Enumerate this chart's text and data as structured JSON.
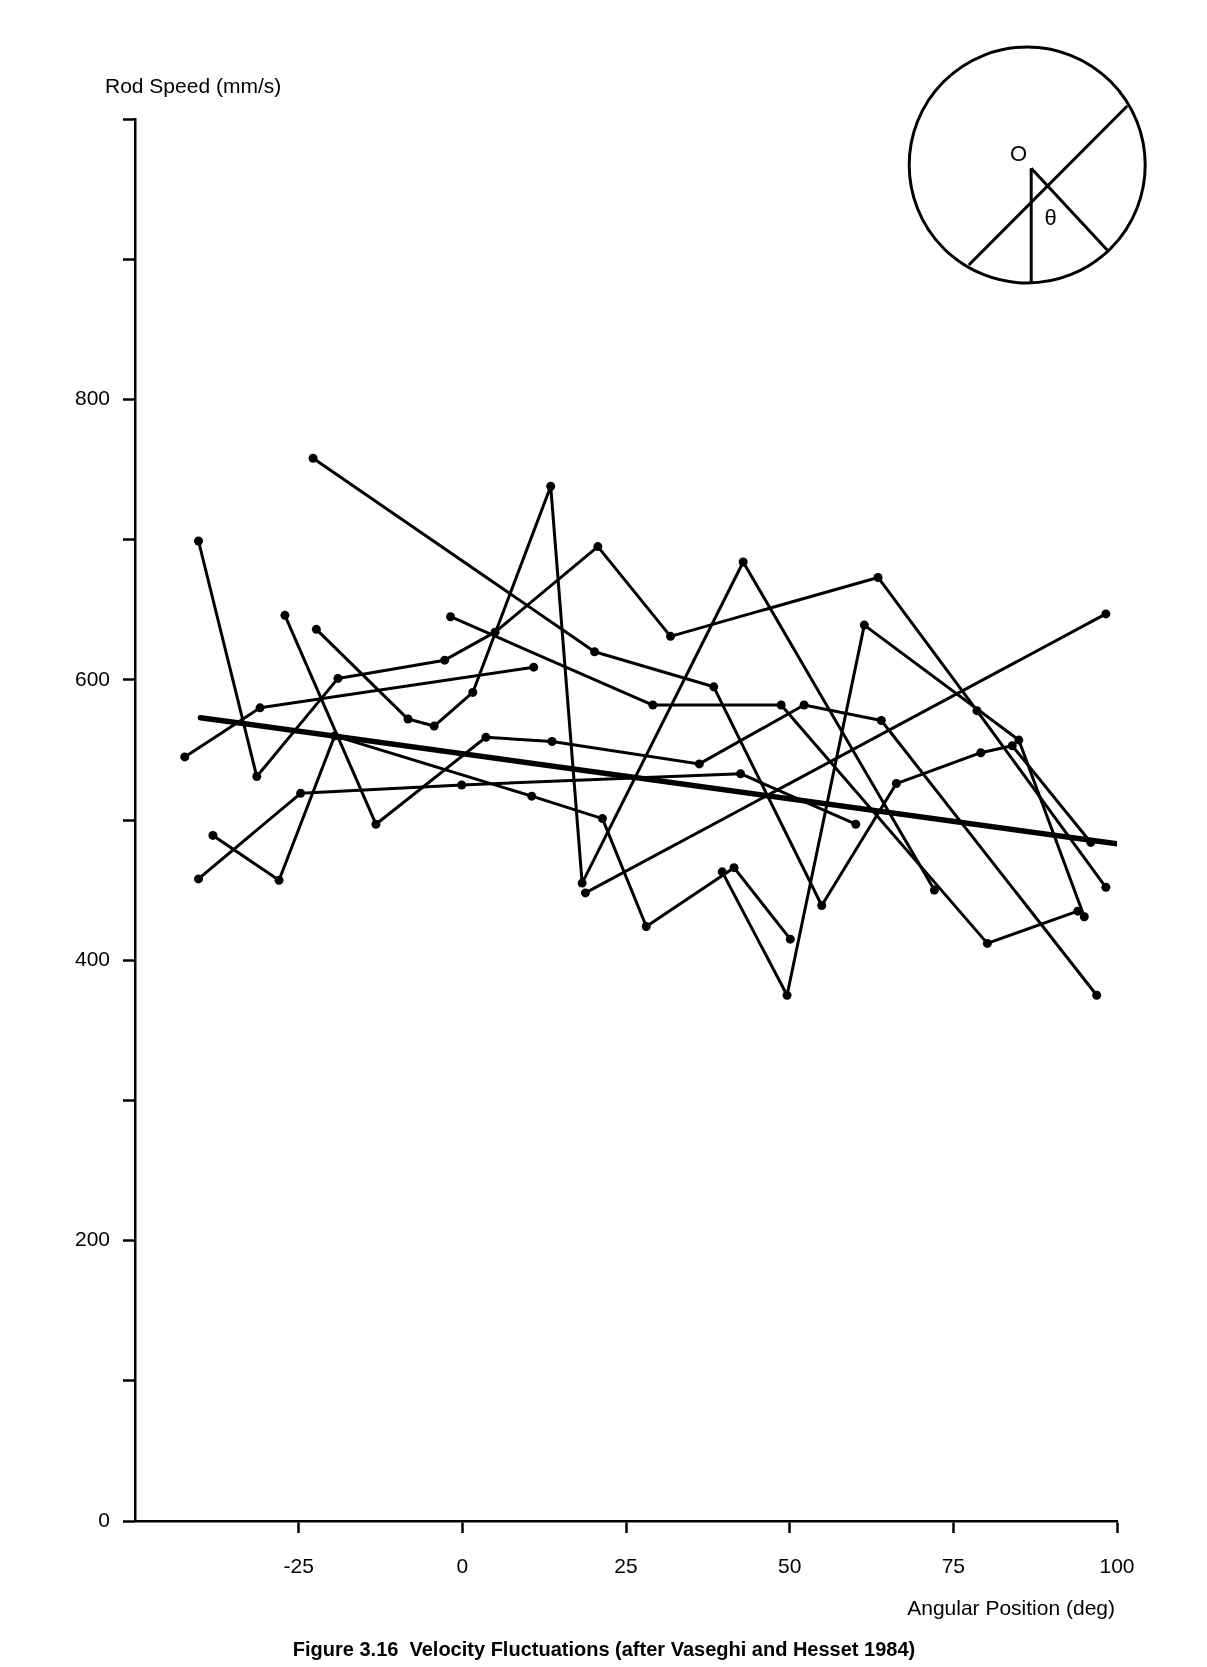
{
  "chart_data": {
    "type": "line",
    "xlabel": "Angular Position (deg)",
    "ylabel": "Rod Speed (mm/s)",
    "annotations": [
      "Figure 3.16  Velocity Fluctuations (after Vaseghi and Hesset 1984)",
      "O",
      "θ"
    ],
    "xlim": [
      -50,
      100
    ],
    "ylim": [
      0,
      1000
    ],
    "xticks": [
      -25,
      0,
      25,
      50,
      75,
      100
    ],
    "yticks": [
      0,
      {
        "value": 100,
        "label": null
      },
      200,
      {
        "value": 300,
        "label": null
      },
      400,
      {
        "value": 500,
        "label": null
      },
      600,
      {
        "value": 700,
        "label": null
      },
      800,
      {
        "value": 900,
        "label": null
      },
      {
        "value": 1000,
        "label": null
      }
    ],
    "grid": false,
    "marker": "circle",
    "series": [
      {
        "color": "#000000",
        "x": [
          -22.8,
          20.2,
          38.4,
          54.9,
          66.3,
          79.2,
          84.0,
          96.0
        ],
        "values": [
          758,
          620,
          595,
          439,
          526,
          548,
          553,
          484
        ]
      },
      {
        "color": "#000000",
        "x": [
          -40.3,
          -31.4,
          -19.0,
          -2.7,
          5.0,
          20.7,
          31.8,
          63.5,
          78.6,
          98.3
        ],
        "values": [
          699,
          531,
          601,
          614,
          634,
          695,
          631,
          673,
          578,
          452
        ]
      },
      {
        "color": "#000000",
        "x": [
          -27.1,
          -13.2,
          3.6,
          13.7,
          36.2,
          52.2,
          64.0,
          96.9
        ],
        "values": [
          646,
          497,
          559,
          556,
          540,
          582,
          571,
          375
        ]
      },
      {
        "color": "#000000",
        "x": [
          -22.3,
          -8.3,
          -4.3,
          1.6,
          13.5,
          18.3,
          42.9,
          72.1
        ],
        "values": [
          636,
          572,
          567,
          591,
          738,
          455,
          684,
          450
        ]
      },
      {
        "color": "#000000",
        "x": [
          -38.1,
          -28.0,
          -19.5,
          10.6,
          21.4,
          28.1,
          41.5,
          50.1
        ],
        "values": [
          489,
          457,
          560,
          517,
          501,
          424,
          466,
          415
        ]
      },
      {
        "color": "#000000",
        "x": [
          -1.8,
          29.1,
          48.7,
          80.2,
          94.0
        ],
        "values": [
          645,
          582,
          582,
          412,
          435
        ]
      },
      {
        "color": "#000000",
        "x": [
          -40.3,
          -24.7,
          -0.1,
          42.5,
          60.1
        ],
        "values": [
          458,
          519,
          525,
          533,
          497
        ]
      },
      {
        "color": "#000000",
        "x": [
          -42.4,
          -30.9,
          10.9
        ],
        "values": [
          545,
          580,
          609
        ]
      },
      {
        "color": "#000000",
        "x": [
          39.7,
          49.6,
          61.4,
          85.0,
          95.0
        ],
        "values": [
          463,
          375,
          639,
          557,
          431
        ]
      },
      {
        "color": "#000000",
        "x": [
          18.8,
          98.3
        ],
        "values": [
          448,
          647
        ]
      },
      {
        "color": "#000000",
        "marker": "none",
        "x": [
          -40,
          100
        ],
        "values": [
          573,
          483
        ]
      }
    ]
  }
}
